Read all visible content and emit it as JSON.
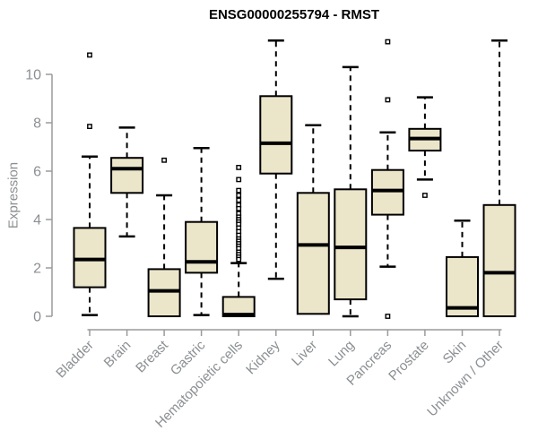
{
  "chart_data": {
    "type": "boxplot",
    "title": "ENSG00000255794 - RMST",
    "ylabel": "Expression",
    "xlabel": "",
    "yticks": [
      0,
      2,
      4,
      6,
      8,
      10
    ],
    "ylim": [
      0,
      11.6
    ],
    "grid": false,
    "legend": "none",
    "categories": [
      "Bladder",
      "Brain",
      "Breast",
      "Gastric",
      "Hematopoietic cells",
      "Kidney",
      "Liver",
      "Lung",
      "Pancreas",
      "Prostate",
      "Skin",
      "Unknown / Other"
    ],
    "series": [
      {
        "category": "Bladder",
        "whislo": 0.05,
        "q1": 1.2,
        "med": 2.35,
        "q3": 3.65,
        "whishi": 6.6,
        "outliers": [
          7.85,
          10.8
        ]
      },
      {
        "category": "Brain",
        "whislo": 3.3,
        "q1": 5.1,
        "med": 6.1,
        "q3": 6.55,
        "whishi": 7.8,
        "outliers": []
      },
      {
        "category": "Breast",
        "whislo": 0.0,
        "q1": 0.0,
        "med": 1.05,
        "q3": 1.95,
        "whishi": 5.0,
        "outliers": [
          6.45
        ]
      },
      {
        "category": "Gastric",
        "whislo": 0.05,
        "q1": 1.8,
        "med": 2.25,
        "q3": 3.9,
        "whishi": 6.95,
        "outliers": []
      },
      {
        "category": "Hematopoietic cells",
        "whislo": 0.0,
        "q1": 0.0,
        "med": 0.07,
        "q3": 0.8,
        "whishi": 2.2,
        "outliers": [
          6.15,
          5.65,
          5.2,
          5.0,
          4.8,
          4.6,
          4.45,
          4.25,
          4.1,
          4.0,
          3.9,
          3.8,
          3.65,
          3.5,
          3.35,
          3.2,
          3.1,
          3.0,
          2.9,
          2.8,
          2.65,
          2.55,
          2.45,
          2.35
        ]
      },
      {
        "category": "Kidney",
        "whislo": 1.55,
        "q1": 5.9,
        "med": 7.15,
        "q3": 9.1,
        "whishi": 11.4,
        "outliers": []
      },
      {
        "category": "Liver",
        "whislo": 0.1,
        "q1": 0.1,
        "med": 2.95,
        "q3": 5.1,
        "whishi": 7.9,
        "outliers": []
      },
      {
        "category": "Lung",
        "whislo": 0.0,
        "q1": 0.7,
        "med": 2.85,
        "q3": 5.25,
        "whishi": 10.3,
        "outliers": []
      },
      {
        "category": "Pancreas",
        "whislo": 2.05,
        "q1": 4.2,
        "med": 5.2,
        "q3": 6.05,
        "whishi": 7.6,
        "outliers": [
          11.35,
          8.95,
          0.0
        ]
      },
      {
        "category": "Prostate",
        "whislo": 5.65,
        "q1": 6.85,
        "med": 7.35,
        "q3": 7.75,
        "whishi": 9.05,
        "outliers": [
          5.0
        ]
      },
      {
        "category": "Skin",
        "whislo": 0.0,
        "q1": 0.0,
        "med": 0.35,
        "q3": 2.45,
        "whishi": 3.95,
        "outliers": []
      },
      {
        "category": "Unknown / Other",
        "whislo": 0.0,
        "q1": 0.0,
        "med": 1.8,
        "q3": 4.6,
        "whishi": 11.4,
        "outliers": []
      }
    ],
    "colors": {
      "box_fill": "#EBE5CA",
      "box_border": "#000000",
      "median": "#000000",
      "whisker": "#000000",
      "outlier_stroke": "#000000",
      "outlier_fill": "#ffffff",
      "axis": "#9a9a9a",
      "tick_label": "#8b8f92",
      "title": "#000000",
      "background": "#ffffff"
    }
  }
}
